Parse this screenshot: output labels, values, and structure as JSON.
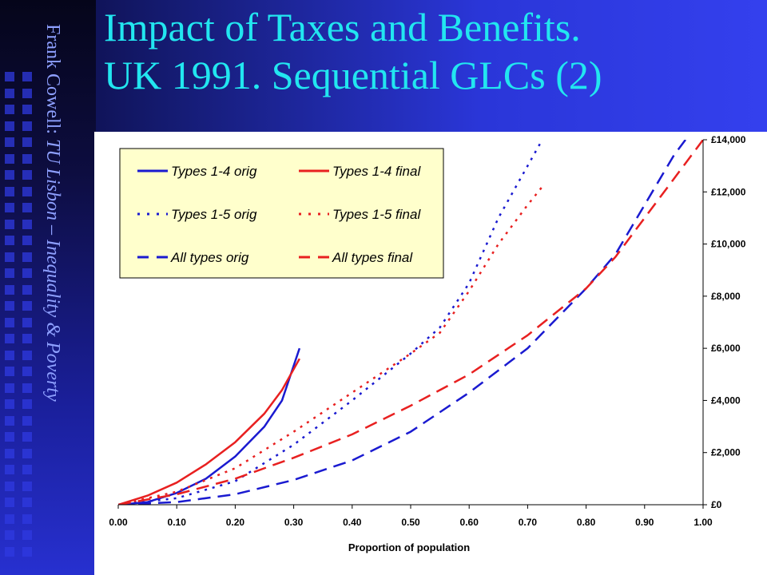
{
  "slide": {
    "title_line1": "Impact of Taxes and Benefits.",
    "title_line2": "UK 1991. Sequential GLCs (2)",
    "side_text_author": "Frank Cowell: ",
    "side_text_course": "TU Lisbon – Inequality & Poverty"
  },
  "colors": {
    "orig": "#1a1ad0",
    "final": "#e82020",
    "plot_bg": "#ffffff",
    "legend_bg": "#ffffcc"
  },
  "chart_data": {
    "type": "line",
    "title": "",
    "xlabel": "Proportion of population",
    "ylabel": "",
    "xlim": [
      0,
      1
    ],
    "ylim": [
      0,
      14000
    ],
    "x_ticks": [
      "0.00",
      "0.10",
      "0.20",
      "0.30",
      "0.40",
      "0.50",
      "0.60",
      "0.70",
      "0.80",
      "0.90",
      "1.00"
    ],
    "y_ticks": [
      "£0",
      "£2,000",
      "£4,000",
      "£6,000",
      "£8,000",
      "£10,000",
      "£12,000",
      "£14,000"
    ],
    "y_axis_side": "right",
    "grid": false,
    "legend_position": "top-left",
    "series": [
      {
        "name": "Types 1-4 orig",
        "style": "solid",
        "color": "orig",
        "points": [
          [
            0,
            0
          ],
          [
            0.05,
            100
          ],
          [
            0.1,
            450
          ],
          [
            0.15,
            1000
          ],
          [
            0.2,
            1850
          ],
          [
            0.25,
            3000
          ],
          [
            0.28,
            4000
          ],
          [
            0.31,
            6000
          ]
        ]
      },
      {
        "name": "Types 1-4 final",
        "style": "solid",
        "color": "final",
        "points": [
          [
            0,
            0
          ],
          [
            0.05,
            350
          ],
          [
            0.1,
            850
          ],
          [
            0.15,
            1550
          ],
          [
            0.2,
            2400
          ],
          [
            0.25,
            3500
          ],
          [
            0.28,
            4400
          ],
          [
            0.31,
            5600
          ]
        ]
      },
      {
        "name": "Types 1-5 orig",
        "style": "dotted",
        "color": "orig",
        "points": [
          [
            0,
            0
          ],
          [
            0.1,
            250
          ],
          [
            0.2,
            900
          ],
          [
            0.3,
            2300
          ],
          [
            0.4,
            4000
          ],
          [
            0.5,
            5800
          ],
          [
            0.55,
            6800
          ],
          [
            0.6,
            8500
          ],
          [
            0.65,
            11000
          ],
          [
            0.7,
            13000
          ],
          [
            0.725,
            14000
          ]
        ]
      },
      {
        "name": "Types 1-5 final",
        "style": "dotted",
        "color": "final",
        "points": [
          [
            0,
            0
          ],
          [
            0.1,
            500
          ],
          [
            0.2,
            1400
          ],
          [
            0.3,
            2800
          ],
          [
            0.4,
            4300
          ],
          [
            0.5,
            5800
          ],
          [
            0.55,
            6600
          ],
          [
            0.6,
            8200
          ],
          [
            0.65,
            10000
          ],
          [
            0.7,
            11500
          ],
          [
            0.725,
            12200
          ]
        ]
      },
      {
        "name": "All types orig",
        "style": "dashed",
        "color": "orig",
        "points": [
          [
            0,
            0
          ],
          [
            0.1,
            100
          ],
          [
            0.2,
            400
          ],
          [
            0.3,
            950
          ],
          [
            0.4,
            1700
          ],
          [
            0.5,
            2800
          ],
          [
            0.6,
            4300
          ],
          [
            0.7,
            6000
          ],
          [
            0.8,
            8300
          ],
          [
            0.85,
            9600
          ],
          [
            0.9,
            11500
          ],
          [
            0.95,
            13400
          ],
          [
            0.97,
            14000
          ]
        ]
      },
      {
        "name": "All types final",
        "style": "dashed",
        "color": "final",
        "points": [
          [
            0,
            0
          ],
          [
            0.1,
            400
          ],
          [
            0.2,
            1000
          ],
          [
            0.3,
            1800
          ],
          [
            0.4,
            2700
          ],
          [
            0.5,
            3800
          ],
          [
            0.6,
            5000
          ],
          [
            0.7,
            6500
          ],
          [
            0.8,
            8300
          ],
          [
            0.85,
            9500
          ],
          [
            0.9,
            11000
          ],
          [
            0.95,
            12500
          ],
          [
            1.0,
            14000
          ]
        ]
      }
    ]
  }
}
